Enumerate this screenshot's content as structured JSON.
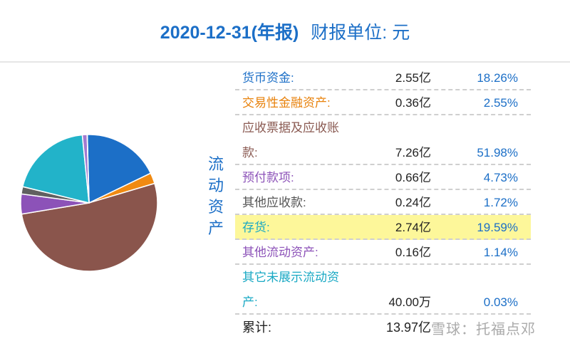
{
  "header": {
    "date": "2020-12-31(年报)",
    "unit": "财报单位: 元"
  },
  "section_label": "流动资产",
  "rows": [
    {
      "name_lines": [
        "货币资金:"
      ],
      "amount": "2.55亿",
      "percent": "18.26%",
      "color": "#1c6fc7"
    },
    {
      "name_lines": [
        "交易性金融资产:"
      ],
      "amount": "0.36亿",
      "percent": "2.55%",
      "color": "#e8820c"
    },
    {
      "name_lines": [
        "应收票据及应收账",
        "款:"
      ],
      "amount": "7.26亿",
      "percent": "51.98%",
      "color": "#8a5a52"
    },
    {
      "name_lines": [
        "预付款项:"
      ],
      "amount": "0.66亿",
      "percent": "4.73%",
      "color": "#8c52b8"
    },
    {
      "name_lines": [
        "其他应收款:"
      ],
      "amount": "0.24亿",
      "percent": "1.72%",
      "color": "#555555"
    },
    {
      "name_lines": [
        "存货:"
      ],
      "amount": "2.74亿",
      "percent": "19.59%",
      "color": "#1aa9c4",
      "highlight": true
    },
    {
      "name_lines": [
        "其他流动资产:"
      ],
      "amount": "0.16亿",
      "percent": "1.14%",
      "color": "#8c52b8"
    },
    {
      "name_lines": [
        "其它未展示流动资",
        "产:"
      ],
      "amount": "40.00万",
      "percent": "0.03%",
      "color": "#1aa9c4"
    }
  ],
  "total": {
    "label": "累计:",
    "amount": "13.97亿"
  },
  "watermark": "雪球：托福点邓",
  "chart_data": {
    "type": "pie",
    "slices": [
      {
        "label": "货币资金",
        "value": 18.26,
        "color": "#1c6fc7"
      },
      {
        "label": "交易性金融资产",
        "value": 2.55,
        "color": "#f08a12"
      },
      {
        "label": "应收票据及应收账款",
        "value": 51.98,
        "color": "#8a554c"
      },
      {
        "label": "预付款项",
        "value": 4.73,
        "color": "#8c52b8"
      },
      {
        "label": "其他应收款",
        "value": 1.72,
        "color": "#606060"
      },
      {
        "label": "存货",
        "value": 19.59,
        "color": "#22b3c9"
      },
      {
        "label": "其他流动资产",
        "value": 1.14,
        "color": "#a27ad0"
      },
      {
        "label": "其它未展示流动资产",
        "value": 0.03,
        "color": "#22b3c9"
      }
    ]
  }
}
